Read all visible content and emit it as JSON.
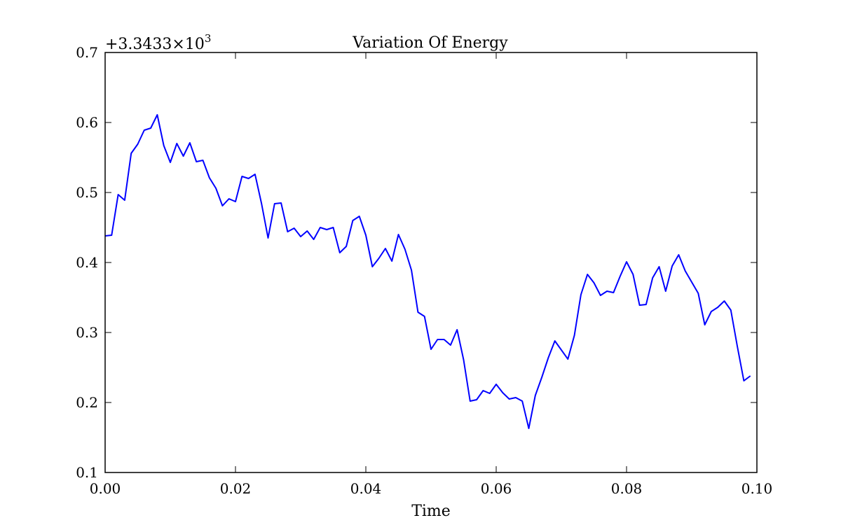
{
  "chart_data": {
    "type": "line",
    "title": "Variation Of Energy",
    "xlabel": "Time",
    "ylabel": "",
    "offset_label": "+3.3433×10",
    "offset_exponent": "3",
    "xlim": [
      0.0,
      0.1
    ],
    "ylim": [
      0.1,
      0.7
    ],
    "xticks": [
      0.0,
      0.02,
      0.04,
      0.06,
      0.08,
      0.1
    ],
    "xtick_labels": [
      "0.00",
      "0.02",
      "0.04",
      "0.06",
      "0.08",
      "0.10"
    ],
    "yticks": [
      0.1,
      0.2,
      0.3,
      0.4,
      0.5,
      0.6,
      0.7
    ],
    "ytick_labels": [
      "0.1",
      "0.2",
      "0.3",
      "0.4",
      "0.5",
      "0.6",
      "0.7"
    ],
    "grid": false,
    "line_color": "#0000ff",
    "series": [
      {
        "x": [
          0.0,
          0.001,
          0.002,
          0.003,
          0.004,
          0.005,
          0.006,
          0.007,
          0.008,
          0.009,
          0.01,
          0.011,
          0.012,
          0.013,
          0.014,
          0.015,
          0.016,
          0.017,
          0.018,
          0.019,
          0.02,
          0.021,
          0.022,
          0.023,
          0.024,
          0.025,
          0.026,
          0.027,
          0.028,
          0.029,
          0.03,
          0.031,
          0.032,
          0.033,
          0.034,
          0.035,
          0.036,
          0.037,
          0.038,
          0.039,
          0.04,
          0.041,
          0.042,
          0.043,
          0.044,
          0.045,
          0.046,
          0.047,
          0.048,
          0.049,
          0.05,
          0.051,
          0.052,
          0.053,
          0.054,
          0.055,
          0.056,
          0.057,
          0.058,
          0.059,
          0.06,
          0.061,
          0.062,
          0.063,
          0.064,
          0.065,
          0.066,
          0.067,
          0.068,
          0.069,
          0.07,
          0.071,
          0.072,
          0.073,
          0.074,
          0.075,
          0.076,
          0.077,
          0.078,
          0.079,
          0.08,
          0.081,
          0.082,
          0.083,
          0.084,
          0.085,
          0.086,
          0.087,
          0.088,
          0.089,
          0.09,
          0.091,
          0.092,
          0.093,
          0.094,
          0.095,
          0.096,
          0.097,
          0.098,
          0.099
        ],
        "y": [
          0.438,
          0.439,
          0.497,
          0.489,
          0.556,
          0.569,
          0.589,
          0.592,
          0.611,
          0.567,
          0.543,
          0.57,
          0.552,
          0.571,
          0.544,
          0.546,
          0.521,
          0.506,
          0.481,
          0.491,
          0.487,
          0.523,
          0.52,
          0.526,
          0.484,
          0.435,
          0.484,
          0.485,
          0.444,
          0.449,
          0.437,
          0.445,
          0.433,
          0.45,
          0.447,
          0.45,
          0.414,
          0.423,
          0.46,
          0.466,
          0.439,
          0.394,
          0.406,
          0.42,
          0.402,
          0.44,
          0.419,
          0.389,
          0.329,
          0.323,
          0.276,
          0.29,
          0.29,
          0.282,
          0.304,
          0.261,
          0.202,
          0.204,
          0.217,
          0.213,
          0.226,
          0.214,
          0.205,
          0.207,
          0.202,
          0.163,
          0.21,
          0.236,
          0.264,
          0.288,
          0.275,
          0.262,
          0.296,
          0.354,
          0.383,
          0.371,
          0.353,
          0.359,
          0.357,
          0.38,
          0.401,
          0.383,
          0.339,
          0.34,
          0.378,
          0.394,
          0.359,
          0.395,
          0.411,
          0.388,
          0.372,
          0.356,
          0.311,
          0.33,
          0.336,
          0.345,
          0.332,
          0.28,
          0.231,
          0.238
        ]
      }
    ]
  }
}
